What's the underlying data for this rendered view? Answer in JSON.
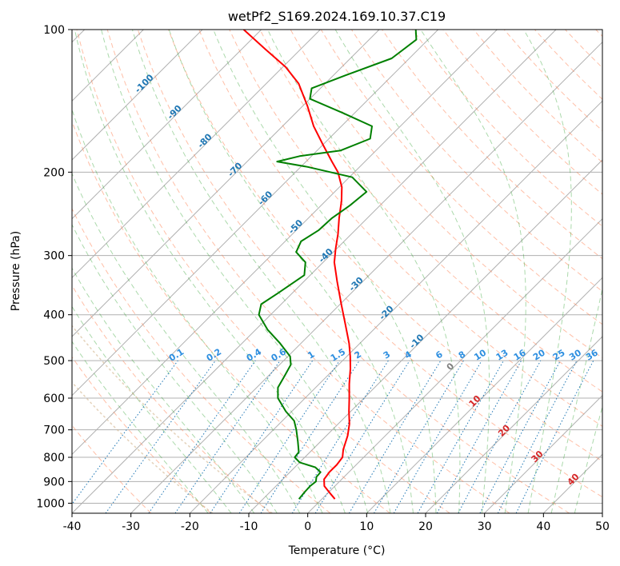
{
  "chart_data": {
    "type": "line",
    "chart_kind": "Skew-T log-P",
    "title": "wetPf2_S169.2024.169.10.37.C19",
    "xlabel": "Temperature (°C)",
    "ylabel": "Pressure (hPa)",
    "xlim": [
      -40,
      50
    ],
    "ylim": [
      1050,
      100
    ],
    "y_scale": "log",
    "grid": true,
    "x_ticks": [
      "-40",
      "-30",
      "-20",
      "-10",
      "0",
      "10",
      "20",
      "30",
      "40",
      "50"
    ],
    "y_ticks": [
      "100",
      "200",
      "300",
      "400",
      "500",
      "600",
      "700",
      "800",
      "900",
      "1000"
    ],
    "colors": {
      "temperature": "#ff0000",
      "dewpoint": "#008000",
      "dry_adiabat": "#ff7f50",
      "moist_adiabat": "#2ca02c",
      "mixing_ratio": "#1f77b4",
      "isotherm": "#808080",
      "isotherm_label_cold": "#1f77b4",
      "isotherm_label_warm": "#d62728",
      "frost_curve": "#d2b48c"
    },
    "series": [
      {
        "role": "temperature",
        "color": "#ff0000",
        "points": [
          {
            "p": 980,
            "t": 2.2
          },
          {
            "p": 950,
            "t": 0.2
          },
          {
            "p": 920,
            "t": -1.8
          },
          {
            "p": 890,
            "t": -3.0
          },
          {
            "p": 860,
            "t": -3.3
          },
          {
            "p": 830,
            "t": -3.3
          },
          {
            "p": 800,
            "t": -3.6
          },
          {
            "p": 770,
            "t": -4.8
          },
          {
            "p": 720,
            "t": -6.4
          },
          {
            "p": 680,
            "t": -8.1
          },
          {
            "p": 640,
            "t": -10.3
          },
          {
            "p": 600,
            "t": -12.5
          },
          {
            "p": 560,
            "t": -14.9
          },
          {
            "p": 520,
            "t": -17.3
          },
          {
            "p": 490,
            "t": -19.4
          },
          {
            "p": 460,
            "t": -21.8
          },
          {
            "p": 420,
            "t": -25.6
          },
          {
            "p": 380,
            "t": -29.8
          },
          {
            "p": 340,
            "t": -34.4
          },
          {
            "p": 310,
            "t": -38.1
          },
          {
            "p": 290,
            "t": -40.2
          },
          {
            "p": 270,
            "t": -42.3
          },
          {
            "p": 250,
            "t": -44.8
          },
          {
            "p": 230,
            "t": -47.3
          },
          {
            "p": 215,
            "t": -49.6
          },
          {
            "p": 200,
            "t": -52.8
          },
          {
            "p": 190,
            "t": -55.6
          },
          {
            "p": 175,
            "t": -60.0
          },
          {
            "p": 160,
            "t": -64.7
          },
          {
            "p": 145,
            "t": -69.2
          },
          {
            "p": 130,
            "t": -74.5
          },
          {
            "p": 120,
            "t": -79.5
          },
          {
            "p": 110,
            "t": -86.0
          },
          {
            "p": 100,
            "t": -93.0
          }
        ]
      },
      {
        "role": "dewpoint",
        "color": "#008000",
        "points": [
          {
            "p": 980,
            "t": -3.9
          },
          {
            "p": 950,
            "t": -4.1
          },
          {
            "p": 920,
            "t": -4.2
          },
          {
            "p": 900,
            "t": -4.0
          },
          {
            "p": 880,
            "t": -4.7
          },
          {
            "p": 860,
            "t": -4.8
          },
          {
            "p": 840,
            "t": -6.5
          },
          {
            "p": 820,
            "t": -10.0
          },
          {
            "p": 800,
            "t": -11.7
          },
          {
            "p": 780,
            "t": -11.9
          },
          {
            "p": 740,
            "t": -13.9
          },
          {
            "p": 700,
            "t": -16.1
          },
          {
            "p": 670,
            "t": -18.0
          },
          {
            "p": 640,
            "t": -21.0
          },
          {
            "p": 600,
            "t": -24.6
          },
          {
            "p": 570,
            "t": -26.4
          },
          {
            "p": 540,
            "t": -27.2
          },
          {
            "p": 510,
            "t": -28.1
          },
          {
            "p": 490,
            "t": -29.6
          },
          {
            "p": 460,
            "t": -33.5
          },
          {
            "p": 430,
            "t": -38.0
          },
          {
            "p": 400,
            "t": -42.0
          },
          {
            "p": 380,
            "t": -43.4
          },
          {
            "p": 360,
            "t": -42.4
          },
          {
            "p": 330,
            "t": -41.0
          },
          {
            "p": 310,
            "t": -43.0
          },
          {
            "p": 295,
            "t": -46.3
          },
          {
            "p": 280,
            "t": -47.3
          },
          {
            "p": 265,
            "t": -46.2
          },
          {
            "p": 250,
            "t": -46.0
          },
          {
            "p": 235,
            "t": -45.1
          },
          {
            "p": 220,
            "t": -44.6
          },
          {
            "p": 205,
            "t": -49.5
          },
          {
            "p": 195,
            "t": -58.8
          },
          {
            "p": 190,
            "t": -64.9
          },
          {
            "p": 185,
            "t": -62.0
          },
          {
            "p": 180,
            "t": -56.0
          },
          {
            "p": 170,
            "t": -53.0
          },
          {
            "p": 160,
            "t": -54.8
          },
          {
            "p": 150,
            "t": -62.0
          },
          {
            "p": 140,
            "t": -70.0
          },
          {
            "p": 133,
            "t": -71.5
          },
          {
            "p": 125,
            "t": -68.0
          },
          {
            "p": 115,
            "t": -63.0
          },
          {
            "p": 105,
            "t": -62.0
          },
          {
            "p": 100,
            "t": -63.8
          }
        ]
      }
    ],
    "mixing_ratio_labels": [
      "0.1",
      "0.2",
      "0.4",
      "0.6",
      "1",
      "1.5",
      "2",
      "3",
      "4",
      "6",
      "8",
      "10",
      "13",
      "16",
      "20",
      "25",
      "30",
      "36"
    ],
    "mixing_ratios": [
      0.1,
      0.2,
      0.4,
      0.6,
      1,
      1.5,
      2,
      3,
      4,
      6,
      8,
      10,
      13,
      16,
      20,
      25,
      30,
      36
    ],
    "isotherm_labels": [
      {
        "t": -100,
        "text": "-100"
      },
      {
        "t": -90,
        "text": "-90"
      },
      {
        "t": -80,
        "text": "-80"
      },
      {
        "t": -70,
        "text": "-70"
      },
      {
        "t": -60,
        "text": "-60"
      },
      {
        "t": -50,
        "text": "-50"
      },
      {
        "t": -40,
        "text": "-40"
      },
      {
        "t": -30,
        "text": "-30"
      },
      {
        "t": -20,
        "text": "-20"
      },
      {
        "t": -10,
        "text": "-10"
      },
      {
        "t": 0,
        "text": "0"
      },
      {
        "t": 10,
        "text": "10"
      },
      {
        "t": 20,
        "text": "20"
      },
      {
        "t": 30,
        "text": "30"
      },
      {
        "t": 40,
        "text": "40"
      }
    ]
  }
}
